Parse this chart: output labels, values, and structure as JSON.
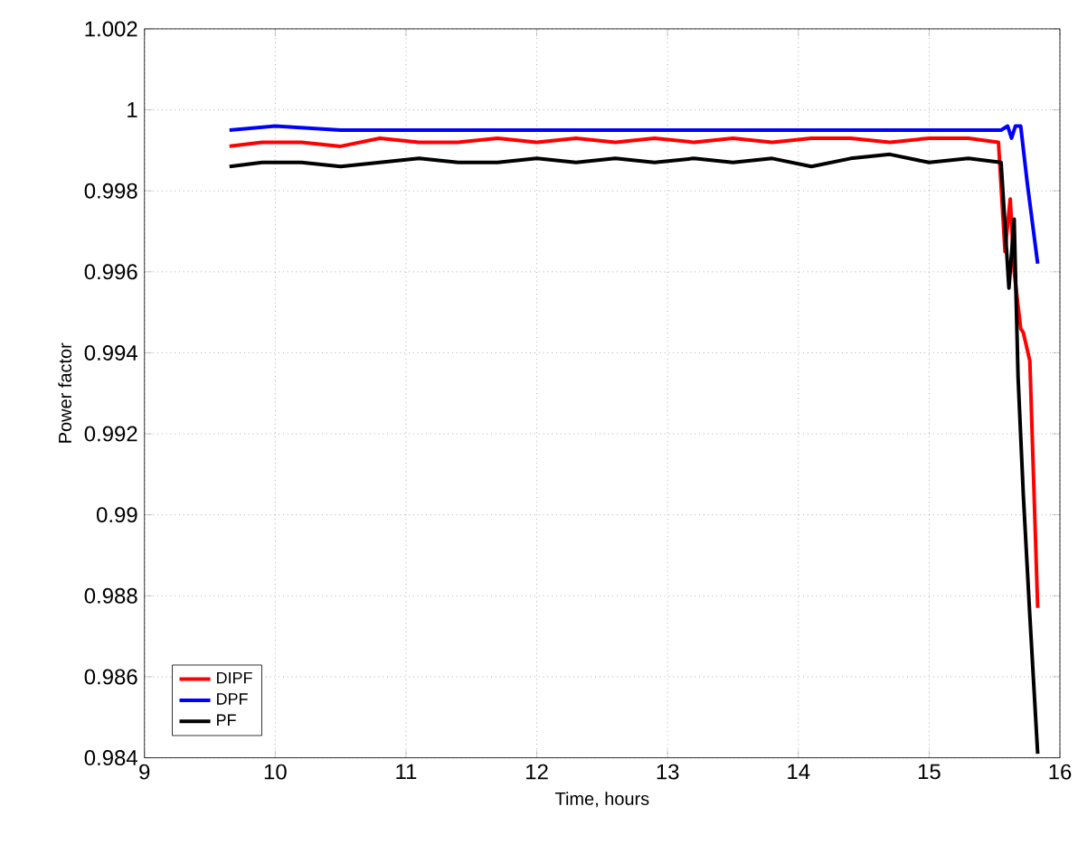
{
  "chart_data": {
    "type": "line",
    "xlabel": "Time, hours",
    "ylabel": "Power factor",
    "xlim": [
      9,
      16
    ],
    "ylim": [
      0.984,
      1.002
    ],
    "xticks": [
      9,
      10,
      11,
      12,
      13,
      14,
      15,
      16
    ],
    "yticks": [
      0.984,
      0.986,
      0.988,
      0.99,
      0.992,
      0.994,
      0.996,
      0.998,
      1,
      1.002
    ],
    "grid": true,
    "legend": "bottom left",
    "line_style": "solid",
    "marker": "none",
    "series": [
      {
        "name": "DIPF",
        "color": "#ff0000",
        "x": [
          9.65,
          9.9,
          10.2,
          10.5,
          10.8,
          11.1,
          11.4,
          11.7,
          12,
          12.3,
          12.6,
          12.9,
          13.2,
          13.5,
          13.8,
          14.1,
          14.4,
          14.7,
          15,
          15.3,
          15.53,
          15.58,
          15.62,
          15.65,
          15.7,
          15.72,
          15.77,
          15.83
        ],
        "values": [
          0.9991,
          0.9992,
          0.9992,
          0.9991,
          0.9993,
          0.9992,
          0.9992,
          0.9993,
          0.9992,
          0.9993,
          0.9992,
          0.9993,
          0.9992,
          0.9993,
          0.9992,
          0.9993,
          0.9993,
          0.9992,
          0.9993,
          0.9993,
          0.9992,
          0.9965,
          0.9978,
          0.996,
          0.9946,
          0.9945,
          0.9938,
          0.9877
        ]
      },
      {
        "name": "DPF",
        "color": "#0000ff",
        "x": [
          9.65,
          10,
          10.5,
          11,
          11.5,
          12,
          12.5,
          13,
          13.5,
          14,
          14.5,
          15,
          15.3,
          15.55,
          15.6,
          15.63,
          15.66,
          15.7,
          15.75,
          15.83
        ],
        "values": [
          0.9995,
          0.9996,
          0.9995,
          0.9995,
          0.9995,
          0.9995,
          0.9995,
          0.9995,
          0.9995,
          0.9995,
          0.9995,
          0.9995,
          0.9995,
          0.9995,
          0.9996,
          0.9993,
          0.9996,
          0.9996,
          0.9982,
          0.9962
        ]
      },
      {
        "name": "PF",
        "color": "#000000",
        "x": [
          9.65,
          9.9,
          10.2,
          10.5,
          10.8,
          11.1,
          11.4,
          11.7,
          12,
          12.3,
          12.6,
          12.9,
          13.2,
          13.5,
          13.8,
          14.1,
          14.4,
          14.7,
          15,
          15.3,
          15.55,
          15.61,
          15.65,
          15.68,
          15.72,
          15.77,
          15.83
        ],
        "values": [
          0.9986,
          0.9987,
          0.9987,
          0.9986,
          0.9987,
          0.9988,
          0.9987,
          0.9987,
          0.9988,
          0.9987,
          0.9988,
          0.9987,
          0.9988,
          0.9987,
          0.9988,
          0.9986,
          0.9988,
          0.9989,
          0.9987,
          0.9988,
          0.9987,
          0.9956,
          0.9973,
          0.9934,
          0.9905,
          0.9875,
          0.9841
        ]
      }
    ]
  }
}
